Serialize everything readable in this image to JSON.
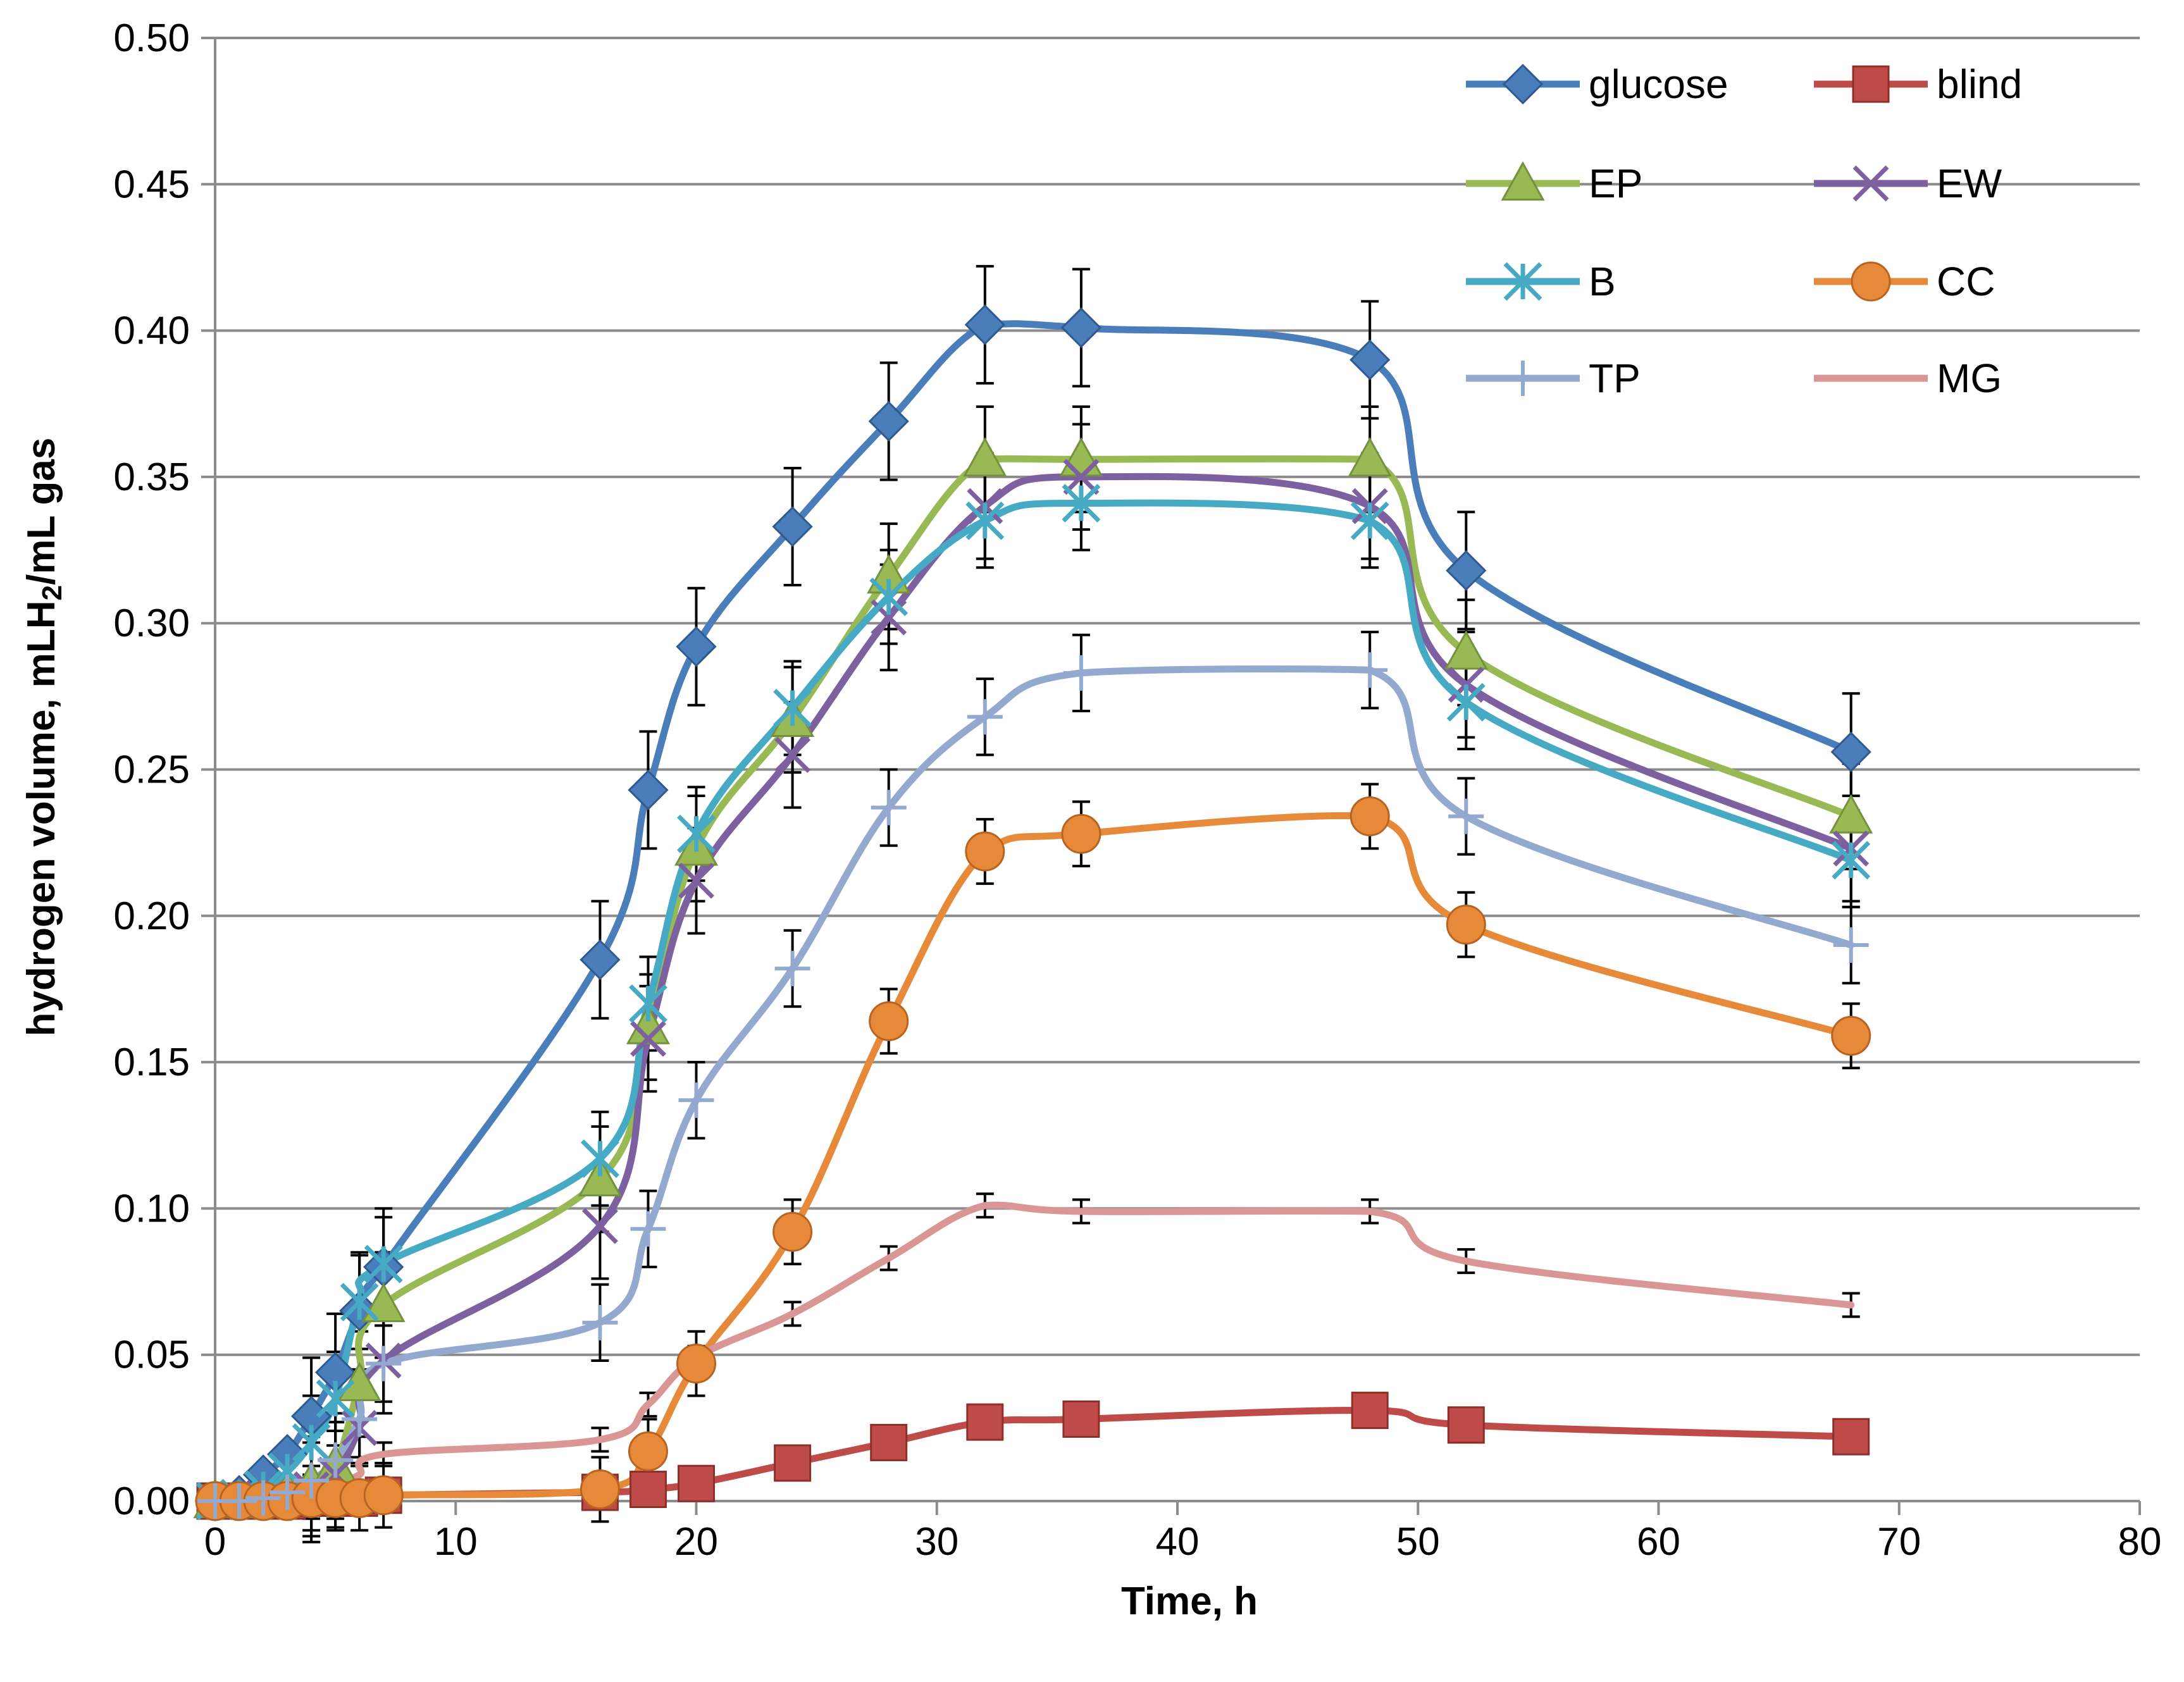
{
  "chart_data": {
    "type": "line",
    "xlabel": "Time, h",
    "ylabel_parts": {
      "pre": "hydrogen volume,  mLH",
      "sub": "2",
      "post": "/mL gas"
    },
    "xlim": [
      0,
      80
    ],
    "ylim": [
      0,
      0.5
    ],
    "x_ticks": [
      0,
      10,
      20,
      30,
      40,
      50,
      60,
      70,
      80
    ],
    "x_tick_labels": [
      "0",
      "10",
      "20",
      "30",
      "40",
      "50",
      "60",
      "70",
      "80"
    ],
    "y_ticks": [
      0,
      0.05,
      0.1,
      0.15,
      0.2,
      0.25,
      0.3,
      0.35,
      0.4,
      0.45,
      0.5
    ],
    "y_tick_labels": [
      "0.00",
      "0.05",
      "0.10",
      "0.15",
      "0.20",
      "0.25",
      "0.30",
      "0.35",
      "0.40",
      "0.45",
      "0.50"
    ],
    "grid": {
      "horizontal": true,
      "vertical": false
    },
    "legend": {
      "placement": "top-right",
      "columns": 2
    },
    "error_bars": true,
    "series": [
      {
        "name": "glucose",
        "color": "#4A7EBB",
        "marker": "diamond",
        "error": 0.02,
        "x": [
          0,
          1,
          2,
          3,
          4,
          5,
          6,
          7,
          16,
          18,
          20,
          24,
          28,
          32,
          36,
          48,
          52,
          68
        ],
        "y": [
          0,
          0.002,
          0.009,
          0.016,
          0.029,
          0.044,
          0.065,
          0.08,
          0.185,
          0.243,
          0.292,
          0.333,
          0.369,
          0.402,
          0.401,
          0.39,
          0.318,
          0.256
        ]
      },
      {
        "name": "blind",
        "color": "#BE4B48",
        "marker": "square",
        "error": 0,
        "x": [
          0,
          1,
          2,
          3,
          4,
          5,
          6,
          7,
          16,
          18,
          20,
          24,
          28,
          32,
          36,
          48,
          52,
          68
        ],
        "y": [
          0,
          0,
          0,
          0,
          0.001,
          0.001,
          0.001,
          0.002,
          0.003,
          0.004,
          0.006,
          0.013,
          0.02,
          0.027,
          0.028,
          0.031,
          0.026,
          0.022
        ]
      },
      {
        "name": "EP",
        "color": "#98B954",
        "marker": "triangle",
        "error": 0.018,
        "x": [
          0,
          1,
          2,
          3,
          4,
          5,
          6,
          7,
          16,
          18,
          20,
          24,
          28,
          32,
          36,
          48,
          52,
          68
        ],
        "y": [
          0,
          0,
          0.001,
          0.003,
          0.006,
          0.012,
          0.04,
          0.067,
          0.11,
          0.162,
          0.223,
          0.267,
          0.316,
          0.356,
          0.356,
          0.356,
          0.29,
          0.234
        ]
      },
      {
        "name": "EW",
        "color": "#7D60A0",
        "marker": "x",
        "error": 0.018,
        "x": [
          0,
          1,
          2,
          3,
          4,
          5,
          6,
          7,
          16,
          18,
          20,
          24,
          28,
          32,
          36,
          48,
          52,
          68
        ],
        "y": [
          0,
          0,
          0.001,
          0.002,
          0.004,
          0.009,
          0.025,
          0.048,
          0.094,
          0.158,
          0.212,
          0.255,
          0.302,
          0.34,
          0.35,
          0.34,
          0.279,
          0.223
        ]
      },
      {
        "name": "B",
        "color": "#46AAC5",
        "marker": "asterisk",
        "error": 0.016,
        "x": [
          0,
          1,
          2,
          3,
          4,
          5,
          6,
          7,
          16,
          18,
          20,
          24,
          28,
          32,
          36,
          48,
          52,
          68
        ],
        "y": [
          0,
          0.001,
          0.004,
          0.01,
          0.02,
          0.035,
          0.068,
          0.081,
          0.117,
          0.17,
          0.228,
          0.271,
          0.309,
          0.335,
          0.341,
          0.335,
          0.273,
          0.219
        ]
      },
      {
        "name": "CC",
        "color": "#E68A3A",
        "marker": "circle",
        "error": 0.011,
        "x": [
          0,
          1,
          2,
          3,
          4,
          5,
          6,
          7,
          16,
          18,
          20,
          24,
          28,
          32,
          36,
          48,
          52,
          68
        ],
        "y": [
          0,
          0,
          0,
          0,
          0.001,
          0.001,
          0.001,
          0.002,
          0.004,
          0.017,
          0.047,
          0.092,
          0.164,
          0.222,
          0.228,
          0.234,
          0.197,
          0.159
        ]
      },
      {
        "name": "TP",
        "color": "#93A9CF",
        "marker": "plus",
        "error": 0.013,
        "x": [
          0,
          1,
          2,
          3,
          4,
          5,
          6,
          7,
          16,
          18,
          20,
          24,
          28,
          32,
          36,
          48,
          52,
          68
        ],
        "y": [
          0,
          0,
          0.001,
          0.003,
          0.007,
          0.014,
          0.028,
          0.047,
          0.061,
          0.093,
          0.137,
          0.182,
          0.237,
          0.268,
          0.283,
          0.284,
          0.234,
          0.19
        ]
      },
      {
        "name": "MG",
        "color": "#D99694",
        "marker": "none",
        "error": 0.004,
        "x": [
          0,
          1,
          2,
          3,
          4,
          5,
          6,
          7,
          16,
          18,
          20,
          24,
          28,
          32,
          36,
          48,
          52,
          68
        ],
        "y": [
          0,
          0,
          0.001,
          0.002,
          0.004,
          0.006,
          0.009,
          0.016,
          0.021,
          0.033,
          0.049,
          0.064,
          0.083,
          0.101,
          0.099,
          0.099,
          0.082,
          0.067
        ]
      }
    ]
  }
}
